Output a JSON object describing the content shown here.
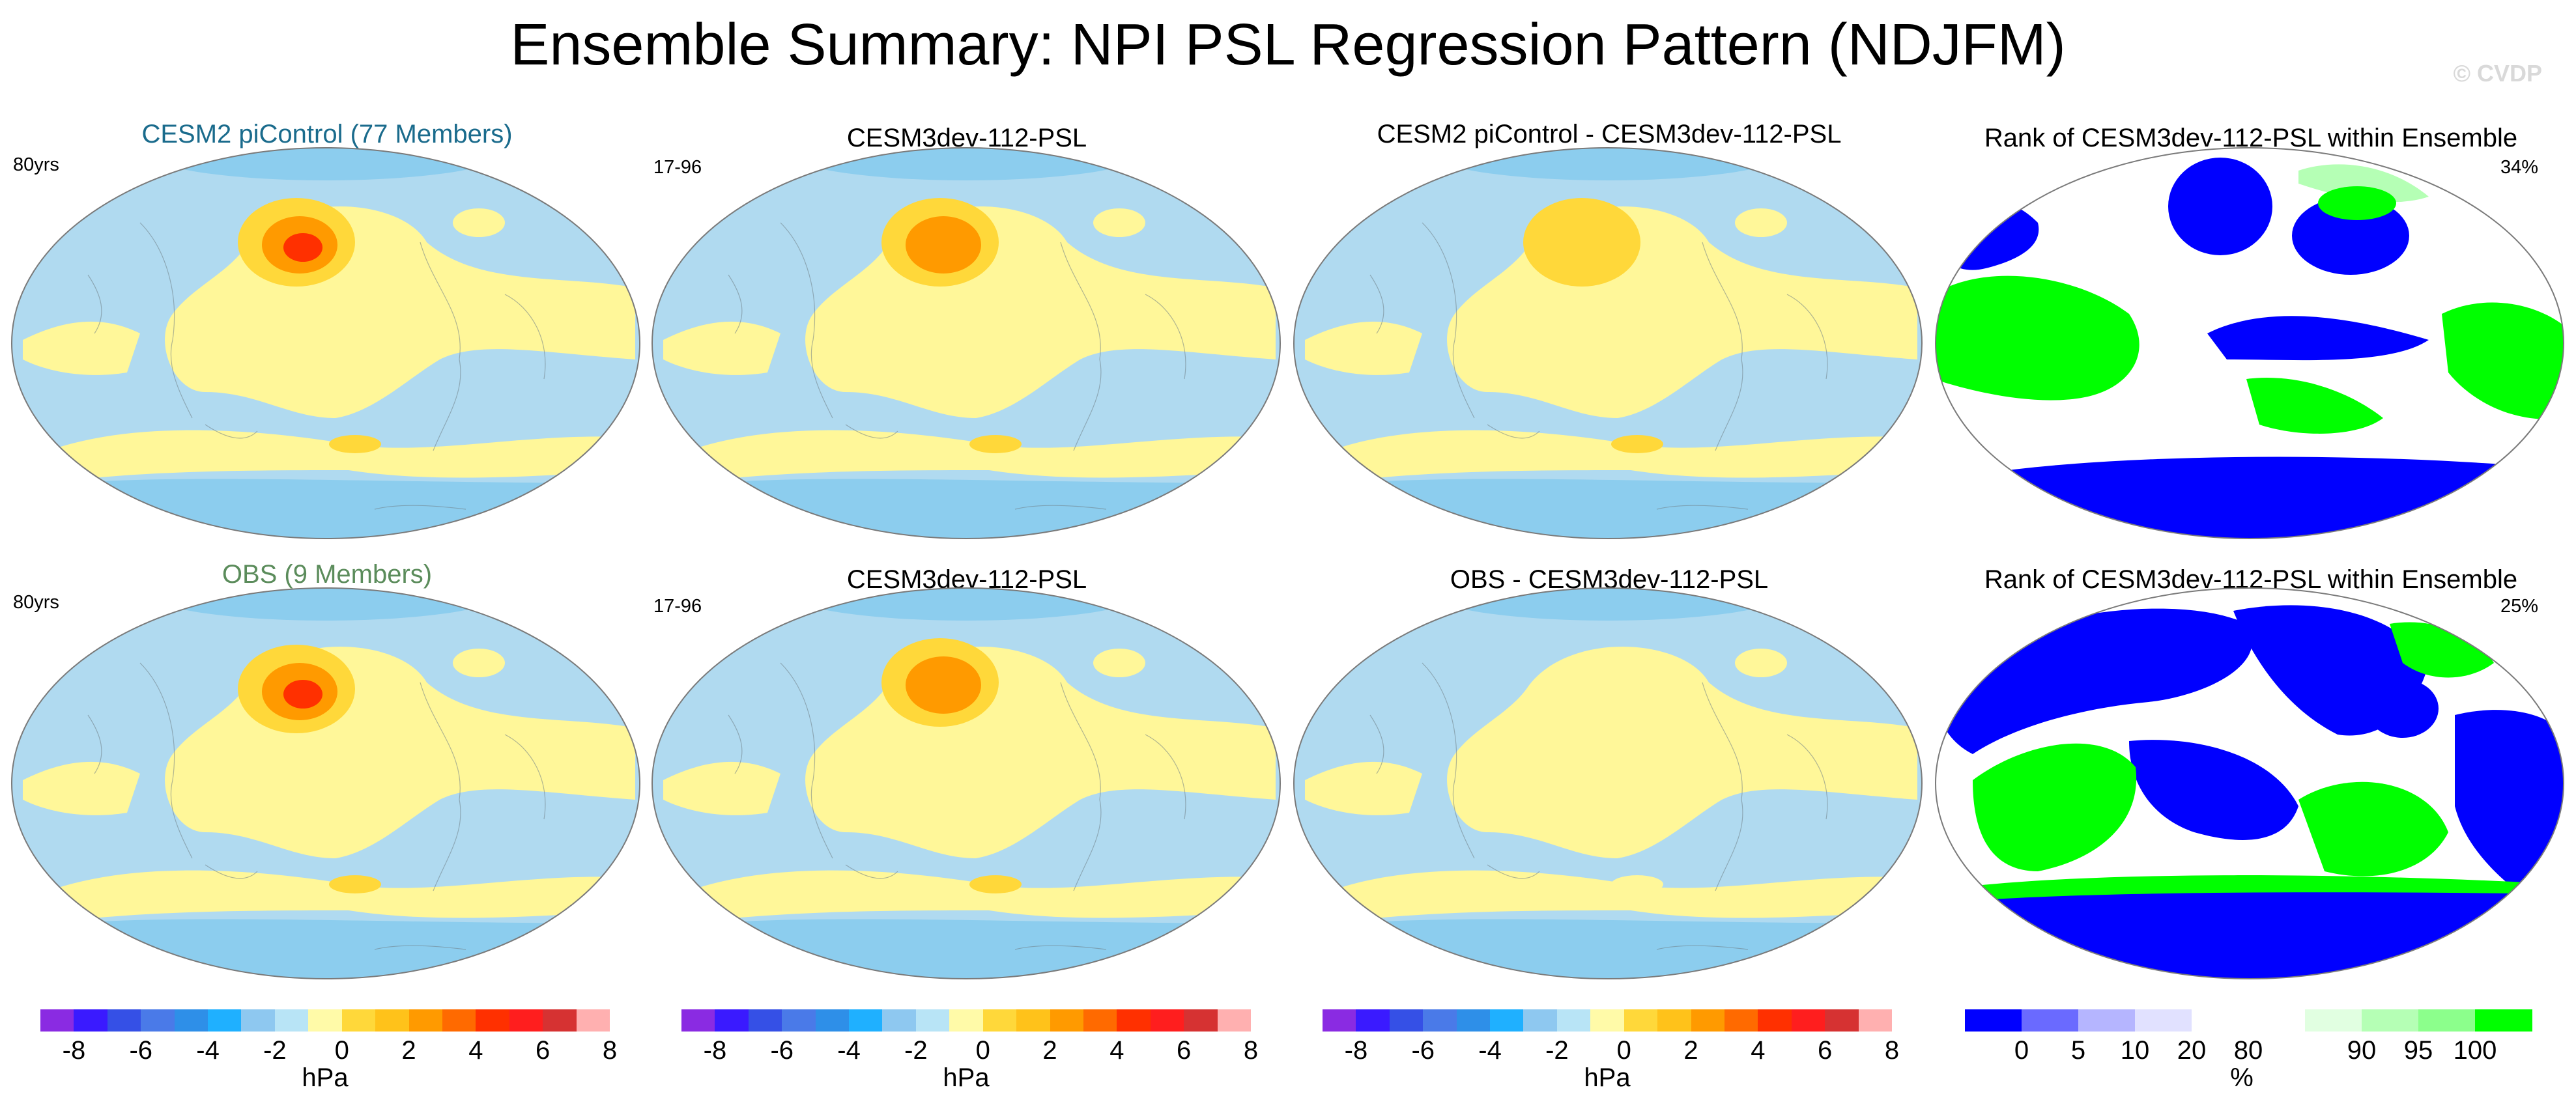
{
  "title": "Ensemble Summary: NPI PSL Regression Pattern (NDJFM)",
  "watermark": "© CVDP",
  "colors": {
    "ocean_base": "#b0daf0",
    "positive": "#fff799",
    "diff_positive": "#ffe65c",
    "negative": "#8ccdee",
    "rank_high": "#00ff00",
    "rank_low": "#0000ff",
    "piControl_title": "#1a6b8c",
    "obs_title": "#5b8c5b"
  },
  "rows": [
    {
      "panels": [
        {
          "title": "CESM2 piControl (77 Members)",
          "tag": "80yrs",
          "kind": "ens"
        },
        {
          "title": "CESM3dev-112-PSL",
          "tag": "17-96",
          "kind": "model"
        },
        {
          "title": "CESM2 piControl - CESM3dev-112-PSL",
          "tag": "",
          "kind": "diff"
        },
        {
          "title": "Rank of CESM3dev-112-PSL within Ensemble",
          "tag": "34%",
          "kind": "rank"
        }
      ]
    },
    {
      "panels": [
        {
          "title": "OBS (9 Members)",
          "tag": "80yrs",
          "kind": "obs"
        },
        {
          "title": "CESM3dev-112-PSL",
          "tag": "17-96",
          "kind": "model"
        },
        {
          "title": "OBS - CESM3dev-112-PSL",
          "tag": "",
          "kind": "diff"
        },
        {
          "title": "Rank of CESM3dev-112-PSL within Ensemble",
          "tag": "25%",
          "kind": "rank"
        }
      ]
    }
  ],
  "colorbar_hpa": {
    "unit": "hPa",
    "colors": [
      "#8a2be2",
      "#3a1aff",
      "#3550e6",
      "#4a7ae8",
      "#2e8fe8",
      "#1fb0ff",
      "#8ec8f0",
      "#b8e4f6",
      "#fffaa8",
      "#ffd83a",
      "#ffc21a",
      "#ff9a00",
      "#ff6a00",
      "#ff3000",
      "#ff1e1e",
      "#d63232",
      "#ffb0b0"
    ],
    "tick_labels": [
      "-8",
      "-6",
      "-4",
      "-2",
      "0",
      "2",
      "4",
      "6",
      "8"
    ]
  },
  "colorbar_rank": {
    "unit": "%",
    "colors": [
      "#0000ff",
      "#6a6aff",
      "#b5b5ff",
      "#e1e1ff",
      "#ffffff",
      "#ffffff",
      "#e1ffe1",
      "#b5ffb5",
      "#8cff8c",
      "#00ff00"
    ],
    "tick_labels": [
      "0",
      "5",
      "10",
      "20",
      "80",
      "90",
      "95",
      "100"
    ]
  }
}
